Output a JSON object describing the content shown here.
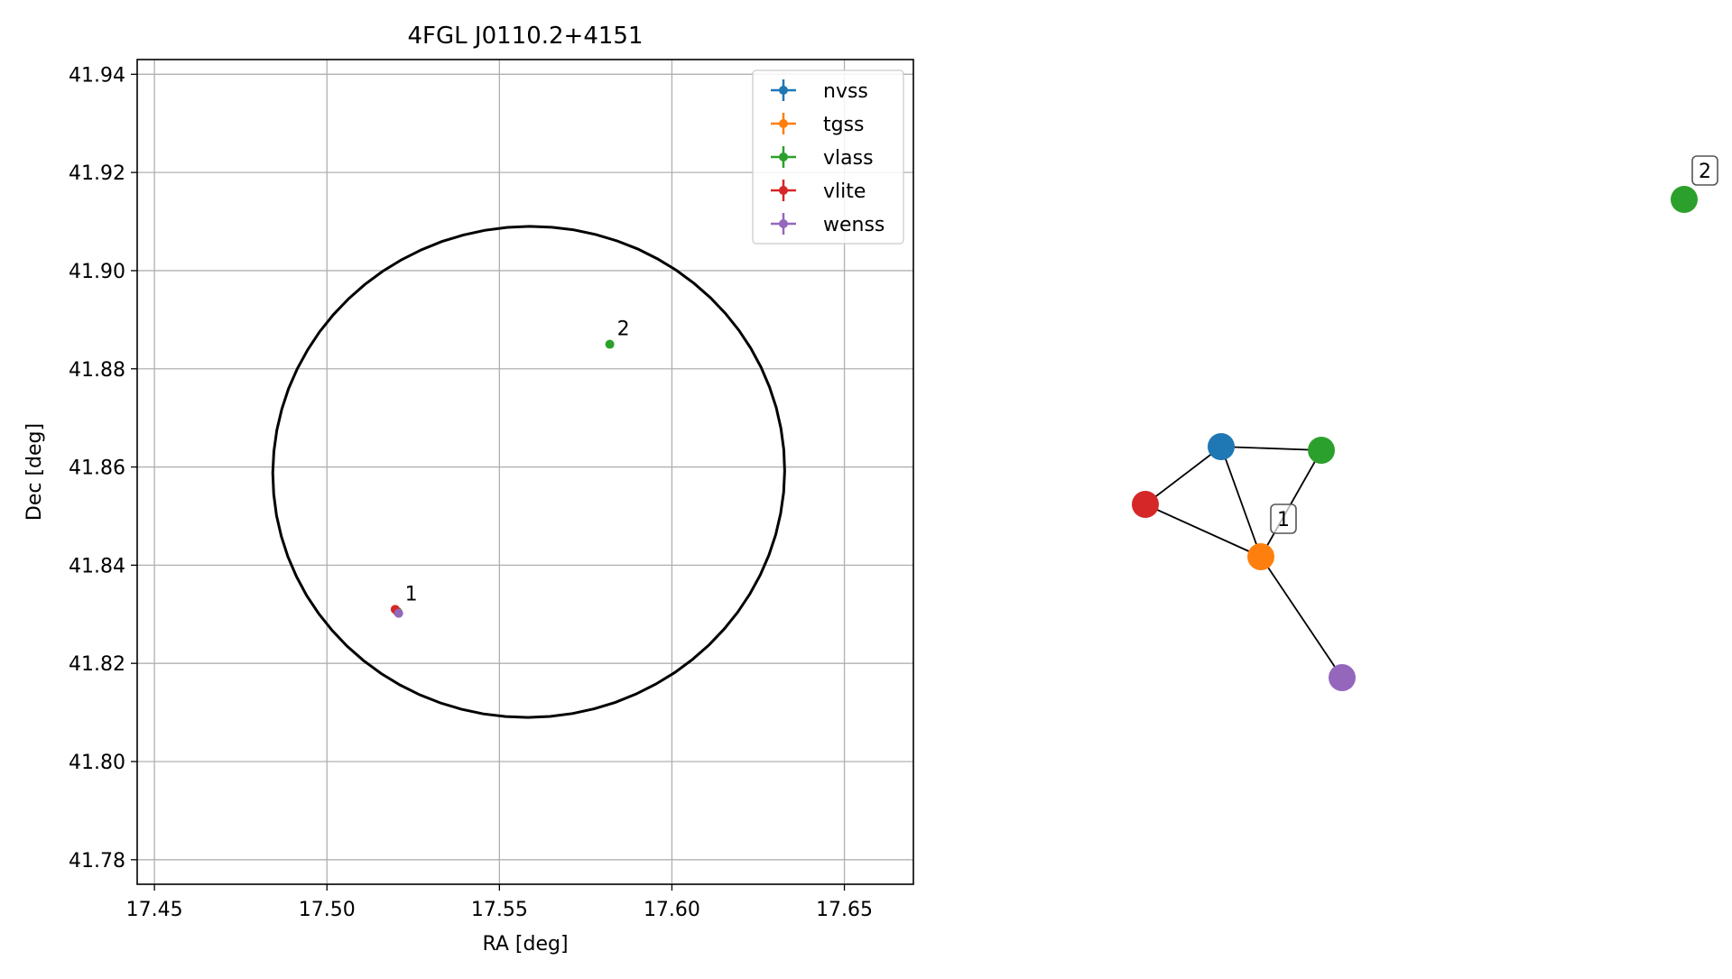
{
  "chart_data": [
    {
      "type": "scatter",
      "title": "4FGL J0110.2+4151",
      "xlabel": "RA [deg]",
      "ylabel": "Dec [deg]",
      "xlim": [
        17.445,
        17.67
      ],
      "ylim": [
        41.775,
        41.943
      ],
      "xticks": [
        17.45,
        17.5,
        17.55,
        17.6,
        17.65
      ],
      "xtick_labels": [
        "17.45",
        "17.50",
        "17.55",
        "17.60",
        "17.65"
      ],
      "yticks": [
        41.78,
        41.8,
        41.82,
        41.84,
        41.86,
        41.88,
        41.9,
        41.92,
        41.94
      ],
      "ytick_labels": [
        "41.78",
        "41.80",
        "41.82",
        "41.84",
        "41.86",
        "41.88",
        "41.90",
        "41.92",
        "41.94"
      ],
      "grid": true,
      "legend_position": "top-right",
      "ellipse": {
        "center_ra": 17.5585,
        "center_dec": 41.859,
        "semi_major_ra": 0.0745,
        "semi_minor_dec": 0.05,
        "angle_deg": 5,
        "color": "#000000"
      },
      "series": [
        {
          "name": "nvss",
          "color": "#1f77b4",
          "points": [
            {
              "x": 17.5205,
              "y": 41.8305
            }
          ]
        },
        {
          "name": "tgss",
          "color": "#ff7f0e",
          "points": [
            {
              "x": 17.5205,
              "y": 41.8305
            }
          ]
        },
        {
          "name": "vlass",
          "color": "#2ca02c",
          "points": [
            {
              "x": 17.5205,
              "y": 41.8305
            },
            {
              "x": 17.582,
              "y": 41.885
            }
          ]
        },
        {
          "name": "vlite",
          "color": "#d62728",
          "points": [
            {
              "x": 17.5198,
              "y": 41.831
            }
          ]
        },
        {
          "name": "wenss",
          "color": "#9467bd",
          "points": [
            {
              "x": 17.5208,
              "y": 41.8302
            }
          ]
        }
      ],
      "annotations": [
        {
          "text": "1",
          "x": 17.5205,
          "y": 41.831
        },
        {
          "text": "2",
          "x": 17.582,
          "y": 41.885
        }
      ]
    },
    {
      "type": "network",
      "nodes": [
        {
          "id": "nvss",
          "color": "#1f77b4"
        },
        {
          "id": "tgss",
          "color": "#ff7f0e"
        },
        {
          "id": "vlass",
          "color": "#2ca02c"
        },
        {
          "id": "vlite",
          "color": "#d62728"
        },
        {
          "id": "wenss",
          "color": "#9467bd"
        },
        {
          "id": "vlass-2",
          "color": "#2ca02c"
        }
      ],
      "edges": [
        [
          "nvss",
          "vlass"
        ],
        [
          "nvss",
          "vlite"
        ],
        [
          "nvss",
          "tgss"
        ],
        [
          "vlass",
          "tgss"
        ],
        [
          "vlite",
          "tgss"
        ],
        [
          "tgss",
          "wenss"
        ]
      ],
      "group_labels": [
        {
          "text": "1",
          "near": "tgss"
        },
        {
          "text": "2",
          "near": "vlass-2"
        }
      ]
    }
  ]
}
